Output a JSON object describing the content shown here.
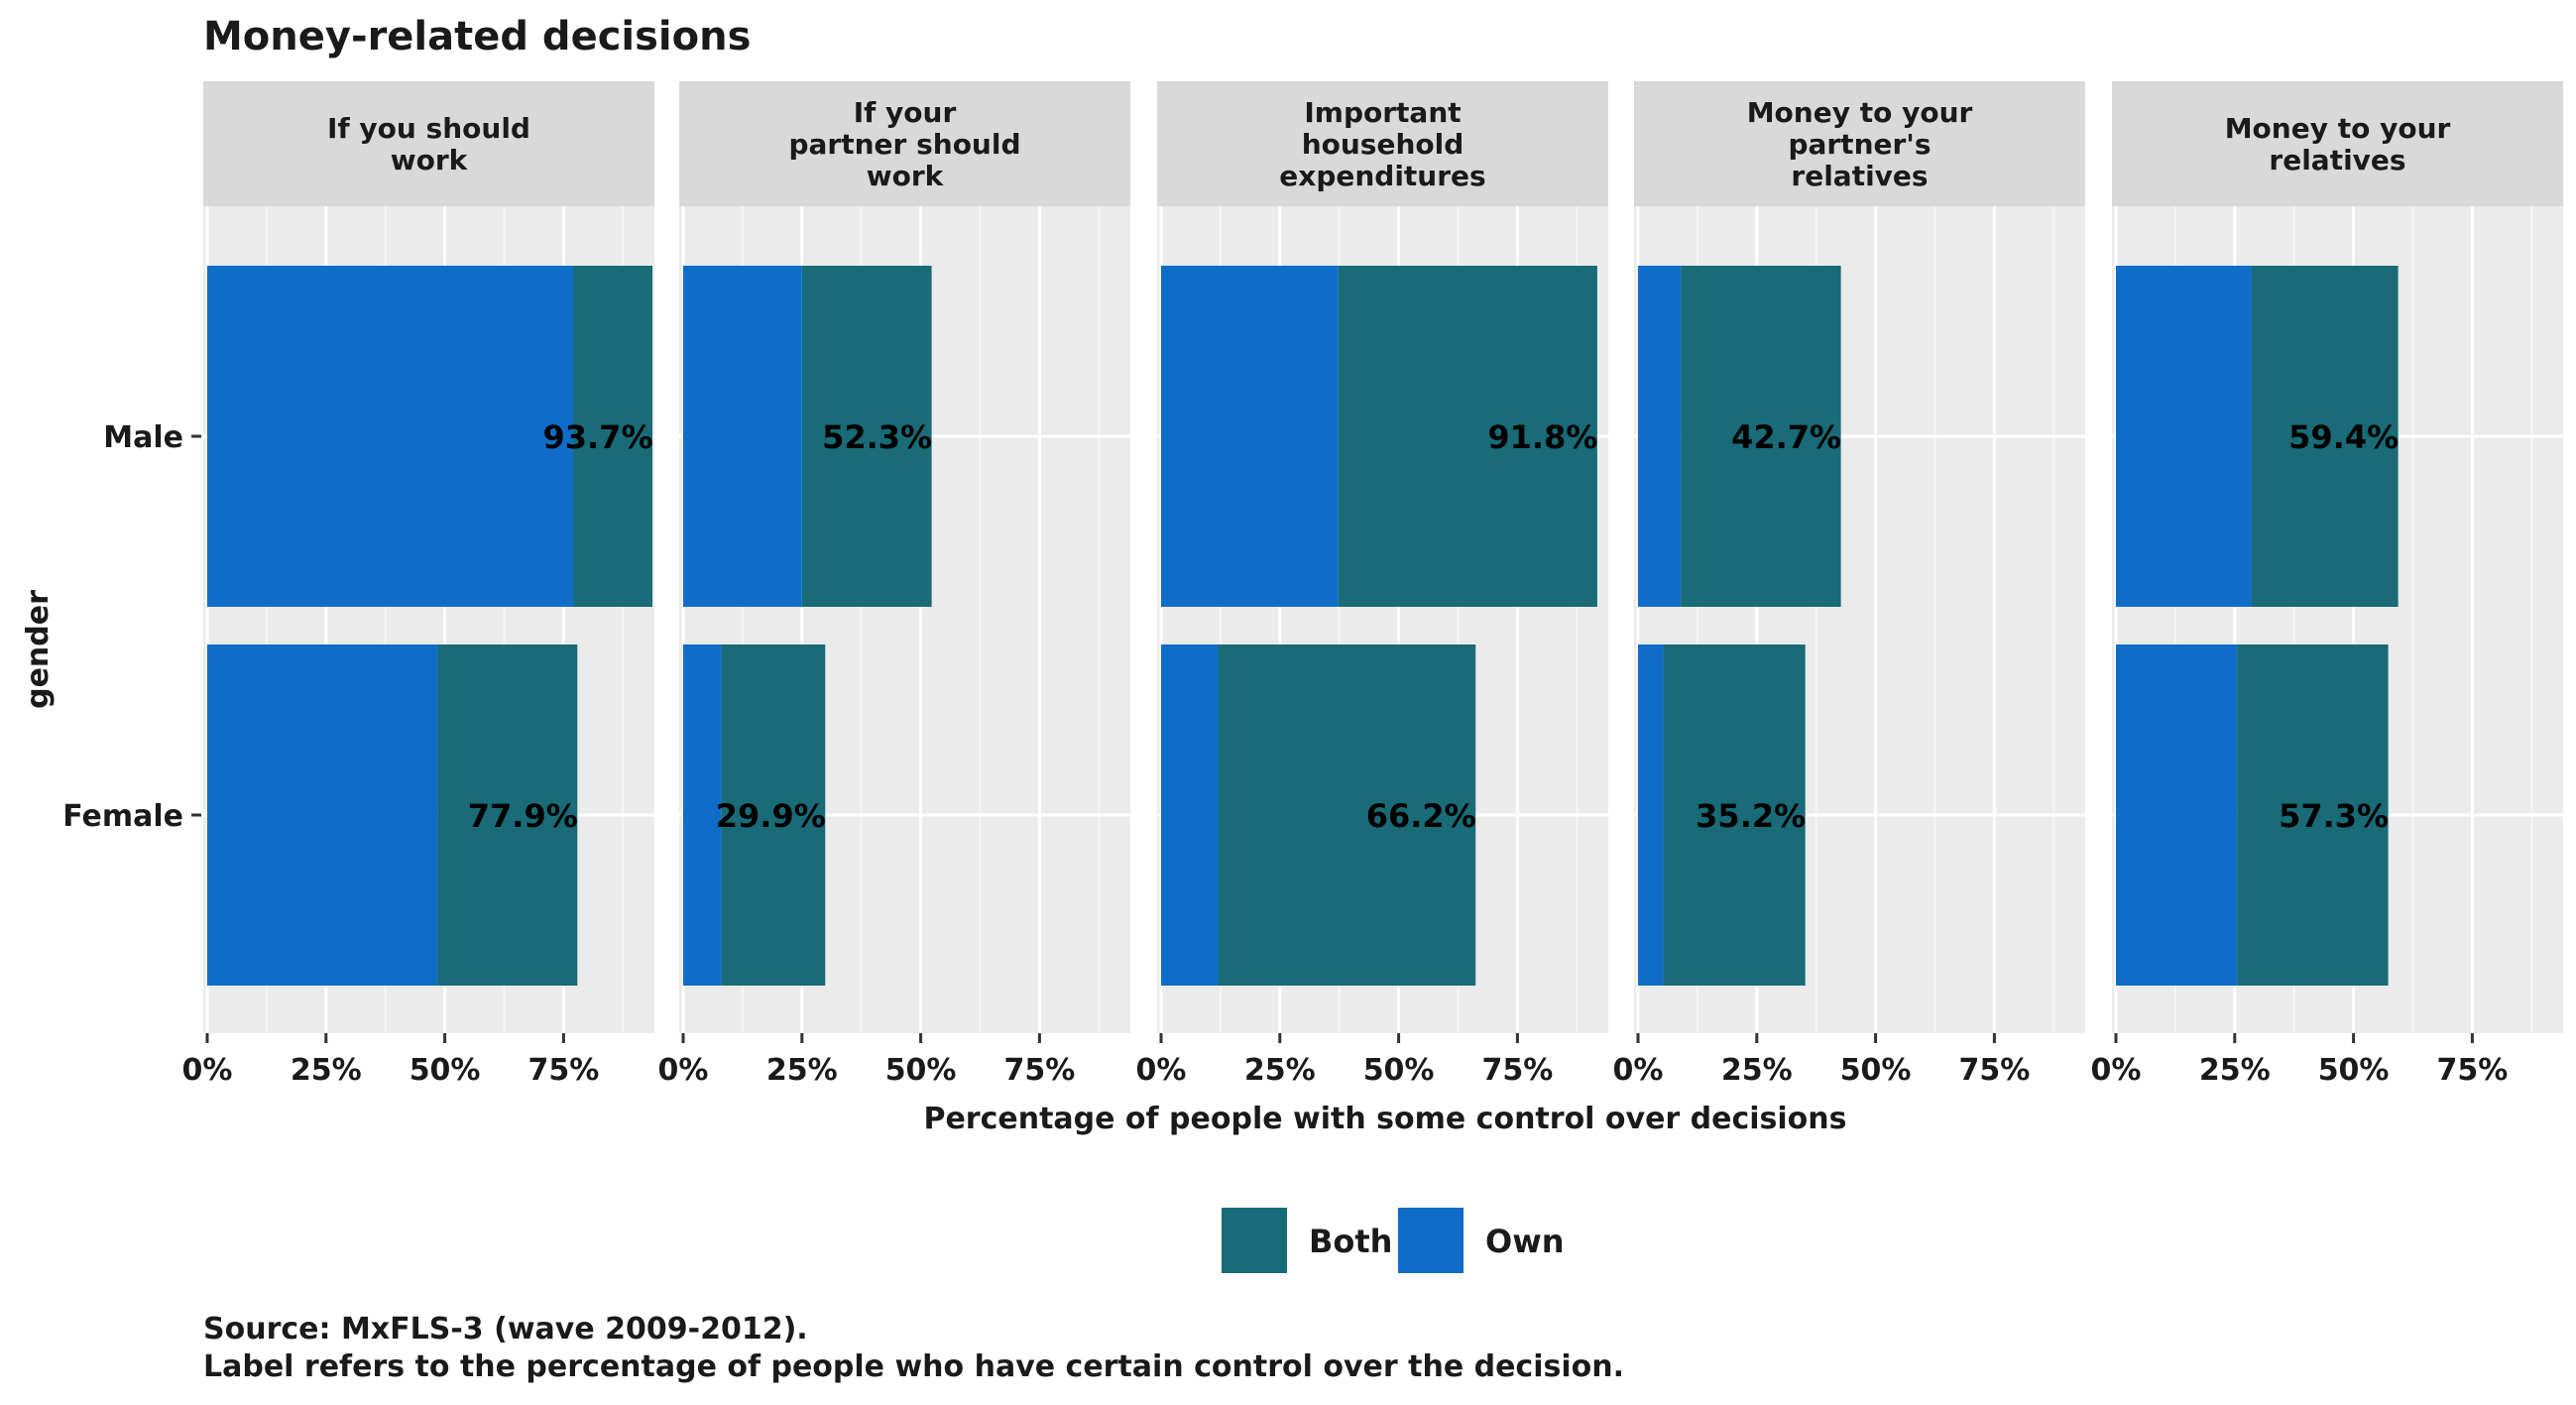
{
  "chart_data": {
    "type": "bar",
    "orientation": "horizontal",
    "stacked": true,
    "title": "Money-related decisions",
    "xlabel": "Percentage of people with some control over decisions",
    "ylabel": "gender",
    "categories": [
      "Male",
      "Female"
    ],
    "x_ticks": [
      "0%",
      "25%",
      "50%",
      "75%"
    ],
    "xlim": [
      0,
      95
    ],
    "grid": true,
    "legend_position": "bottom",
    "legend": [
      {
        "key": "both",
        "label": "Both",
        "color": "#186B77"
      },
      {
        "key": "own",
        "label": "Own",
        "color": "#0F6DC7"
      }
    ],
    "facets": [
      {
        "title_lines": [
          "If you should",
          "work"
        ],
        "bars": [
          {
            "category": "Male",
            "own": 77.0,
            "both": 16.7,
            "label": "93.7%"
          },
          {
            "category": "Female",
            "own": 48.5,
            "both": 29.4,
            "label": "77.9%"
          }
        ]
      },
      {
        "title_lines": [
          "If your",
          "partner should",
          "work"
        ],
        "bars": [
          {
            "category": "Male",
            "own": 25.0,
            "both": 27.3,
            "label": "52.3%"
          },
          {
            "category": "Female",
            "own": 8.0,
            "both": 21.9,
            "label": "29.9%"
          }
        ]
      },
      {
        "title_lines": [
          "Important",
          "household",
          "expenditures"
        ],
        "bars": [
          {
            "category": "Male",
            "own": 37.3,
            "both": 54.5,
            "label": "91.8%"
          },
          {
            "category": "Female",
            "own": 12.0,
            "both": 54.2,
            "label": "66.2%"
          }
        ]
      },
      {
        "title_lines": [
          "Money to your",
          "partner's",
          "relatives"
        ],
        "bars": [
          {
            "category": "Male",
            "own": 9.0,
            "both": 33.7,
            "label": "42.7%"
          },
          {
            "category": "Female",
            "own": 5.3,
            "both": 29.9,
            "label": "35.2%"
          }
        ]
      },
      {
        "title_lines": [
          "Money to your",
          "relatives"
        ],
        "bars": [
          {
            "category": "Male",
            "own": 28.5,
            "both": 30.9,
            "label": "59.4%"
          },
          {
            "category": "Female",
            "own": 25.5,
            "both": 31.8,
            "label": "57.3%"
          }
        ]
      }
    ],
    "caption_lines": [
      "Source: MxFLS-3 (wave 2009-2012).",
      "Label refers to the percentage of people who have certain control over the decision."
    ],
    "colors": {
      "panel_bg": "#EBEBEB",
      "strip_bg": "#D9D9D9",
      "grid_major": "#FFFFFF",
      "grid_minor": "#F5F5F5"
    }
  }
}
